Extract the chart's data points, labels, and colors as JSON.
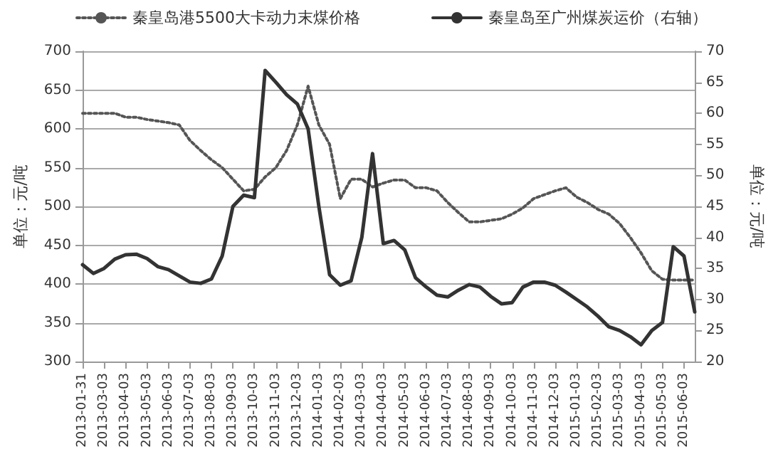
{
  "chart_data": {
    "type": "line",
    "categories": [
      "2013-01-31",
      null,
      "2013-03-03",
      null,
      "2013-04-03",
      null,
      "2013-05-03",
      null,
      "2013-06-03",
      null,
      "2013-07-03",
      null,
      "2013-08-03",
      null,
      "2013-09-03",
      null,
      "2013-10-03",
      null,
      "2013-11-03",
      null,
      "2013-12-03",
      null,
      "2014-01-03",
      null,
      "2014-02-03",
      null,
      "2014-03-03",
      null,
      "2014-04-03",
      null,
      "2014-05-03",
      null,
      "2014-06-03",
      null,
      "2014-07-03",
      null,
      "2014-08-03",
      null,
      "2014-09-03",
      null,
      "2014-10-03",
      null,
      "2014-11-03",
      null,
      "2014-12-03",
      null,
      "2015-01-03",
      null,
      "2015-02-03",
      null,
      "2015-03-03",
      null,
      "2015-04-03",
      null,
      "2015-05-03",
      null,
      "2015-06-03",
      null
    ],
    "series": [
      {
        "name": "秦皇岛港5500大卡动力末煤价格",
        "color": "#555555",
        "line_style": "dotted",
        "values": [
          620,
          620,
          620,
          620,
          615,
          615,
          612,
          610,
          608,
          605,
          585,
          572,
          560,
          550,
          535,
          520,
          522,
          538,
          550,
          572,
          605,
          655,
          605,
          580,
          510,
          535,
          535,
          525,
          530,
          534,
          534,
          524,
          524,
          520,
          505,
          492,
          480,
          480,
          482,
          484,
          490,
          498,
          510,
          515,
          520,
          524,
          512,
          505,
          496,
          490,
          478,
          460,
          440,
          417,
          406,
          405,
          405,
          405
        ]
      },
      {
        "name": "秦皇岛至广州煤炭运价（右轴）",
        "color": "#333333",
        "line_style": "solid",
        "axis": "y2",
        "values": [
          35.6,
          34.2,
          35,
          36.5,
          37.2,
          37.3,
          36.6,
          35.3,
          34.8,
          33.8,
          32.8,
          32.6,
          33.3,
          37,
          45,
          46.8,
          46.4,
          66.9,
          65,
          63,
          61.5,
          57.5,
          45,
          34,
          32.3,
          33,
          40,
          53.5,
          39,
          39.5,
          38,
          33.5,
          32,
          30.7,
          30.4,
          31.5,
          32.4,
          32,
          30.5,
          29.3,
          29.5,
          32,
          32.8,
          32.8,
          32.3,
          31.2,
          30,
          28.8,
          27.3,
          25.6,
          25,
          24,
          22.7,
          25,
          26.3,
          38.5,
          37,
          28
        ]
      }
    ],
    "ylabel": "单位：元/吨",
    "y2label": "单位：元/吨",
    "ylim": [
      300,
      700
    ],
    "yticks": [
      300,
      350,
      400,
      450,
      500,
      550,
      600,
      650,
      700
    ],
    "y2lim": [
      20,
      70
    ],
    "y2ticks": [
      20,
      25,
      30,
      35,
      40,
      45,
      50,
      55,
      60,
      65,
      70
    ],
    "grid": "y",
    "legend": "top",
    "marker": "none"
  }
}
